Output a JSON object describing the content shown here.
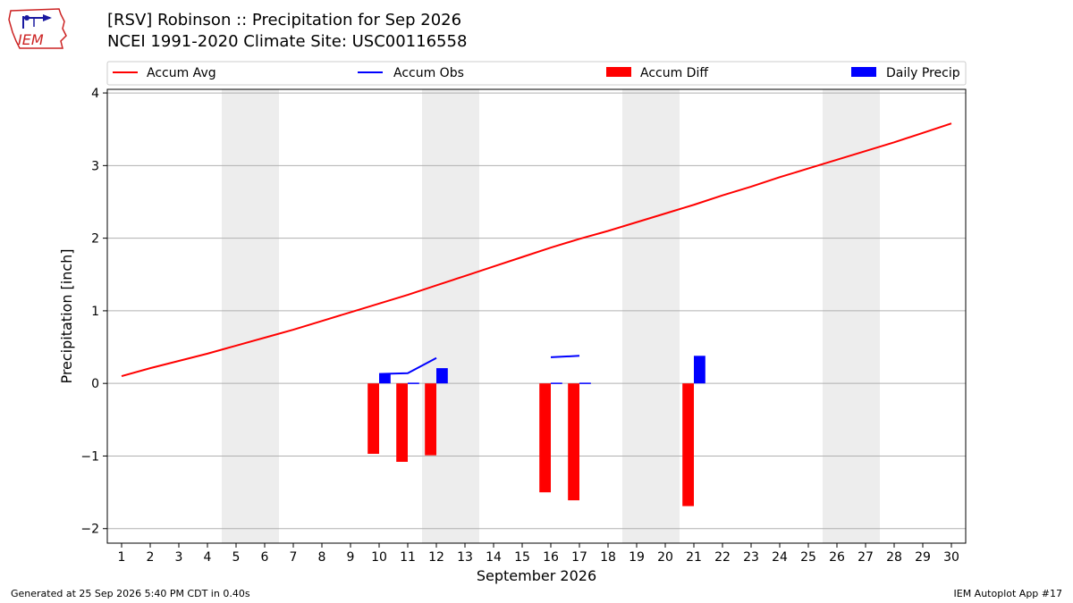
{
  "header": {
    "title_line1": "[RSV] Robinson :: Precipitation for Sep 2026",
    "title_line2": "NCEI 1991-2020 Climate Site: USC00116558",
    "logo_text": "IEM"
  },
  "footer": {
    "generated": "Generated at 25 Sep 2026 5:40 PM CDT in 0.40s",
    "app": "IEM Autoplot App #17"
  },
  "colors": {
    "avg": "#ff0000",
    "obs": "#0000ff",
    "diff": "#ff0000",
    "daily": "#0000ff",
    "weekend": "#ededed",
    "grid": "#b0b0b0"
  },
  "chart_data": {
    "type": "bar",
    "xlabel": "September 2026",
    "ylabel": "Precipitation [inch]",
    "xlim": [
      0.5,
      30.5
    ],
    "ylim": [
      -2.2,
      4.05
    ],
    "yticks": [
      -2,
      -1,
      0,
      1,
      2,
      3,
      4
    ],
    "ytick_labels": [
      "−2",
      "−1",
      "0",
      "1",
      "2",
      "3",
      "4"
    ],
    "days": [
      1,
      2,
      3,
      4,
      5,
      6,
      7,
      8,
      9,
      10,
      11,
      12,
      13,
      14,
      15,
      16,
      17,
      18,
      19,
      20,
      21,
      22,
      23,
      24,
      25,
      26,
      27,
      28,
      29,
      30
    ],
    "weekend_spans": [
      [
        5,
        6
      ],
      [
        12,
        13
      ],
      [
        19,
        20
      ],
      [
        26,
        27
      ]
    ],
    "grid": "y",
    "legend_position": "top",
    "legend": [
      "Accum Avg",
      "Accum Obs",
      "Accum Diff",
      "Daily Precip"
    ],
    "accum_avg": [
      0.1,
      0.21,
      0.31,
      0.41,
      0.52,
      0.63,
      0.74,
      0.86,
      0.98,
      1.1,
      1.22,
      1.35,
      1.48,
      1.61,
      1.74,
      1.87,
      1.99,
      2.1,
      2.22,
      2.34,
      2.46,
      2.59,
      2.71,
      2.84,
      2.96,
      3.08,
      3.2,
      3.32,
      3.45,
      3.58
    ],
    "accum_obs_segments": [
      {
        "days": [
          10,
          11,
          12
        ],
        "values": [
          0.13,
          0.14,
          0.35
        ]
      },
      {
        "days": [
          16,
          17
        ],
        "values": [
          0.36,
          0.38
        ]
      }
    ],
    "accum_diff": [
      {
        "day": 10,
        "value": -0.97
      },
      {
        "day": 11,
        "value": -1.08
      },
      {
        "day": 12,
        "value": -0.99
      },
      {
        "day": 16,
        "value": -1.5
      },
      {
        "day": 17,
        "value": -1.61
      },
      {
        "day": 21,
        "value": -1.69
      }
    ],
    "daily_precip": [
      {
        "day": 10,
        "value": 0.13
      },
      {
        "day": 11,
        "value": 0.01
      },
      {
        "day": 12,
        "value": 0.21
      },
      {
        "day": 16,
        "value": 0.01
      },
      {
        "day": 17,
        "value": 0.01
      },
      {
        "day": 21,
        "value": 0.38
      }
    ]
  }
}
